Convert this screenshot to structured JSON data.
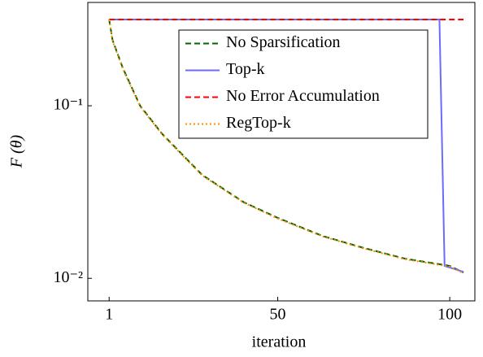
{
  "chart_data": {
    "type": "line",
    "xlabel": "iteration",
    "ylabel": "F (θ)",
    "xlim": [
      -5.2,
      107.3
    ],
    "xticks": [
      1,
      50,
      100
    ],
    "ylim": [
      0.0074,
      0.397
    ],
    "log_y": true,
    "yticks": [
      {
        "value": 0.01,
        "label": "10⁻²"
      },
      {
        "value": 0.1,
        "label": "10⁻¹"
      }
    ],
    "legend": "upper right",
    "series": [
      {
        "name": "No Sparsification",
        "color": "#006400",
        "dash": "dashed",
        "x": [
          1,
          2,
          5,
          10,
          16.5,
          28,
          40,
          50,
          63,
          75,
          87,
          100,
          104
        ],
        "values": [
          0.316,
          0.24,
          0.165,
          0.1,
          0.0684,
          0.0398,
          0.0277,
          0.0224,
          0.0176,
          0.015,
          0.013,
          0.0118,
          0.0108
        ]
      },
      {
        "name": "Top-k",
        "color": "#6b6bff",
        "dash": "solid",
        "x": [
          1,
          97,
          98.5,
          104
        ],
        "values": [
          0.316,
          0.316,
          0.0118,
          0.0109
        ]
      },
      {
        "name": "No Error Accumulation",
        "color": "#ff0000",
        "dash": "dashed",
        "x": [
          1,
          104
        ],
        "values": [
          0.316,
          0.316
        ]
      },
      {
        "name": "RegTop-k",
        "color": "#ff8c00",
        "dash": "dotted",
        "x": [
          1,
          2,
          5,
          10,
          16.5,
          28,
          40,
          50,
          63,
          75,
          87,
          100,
          104
        ],
        "values": [
          0.316,
          0.238,
          0.163,
          0.099,
          0.0678,
          0.0395,
          0.0275,
          0.0222,
          0.0175,
          0.0149,
          0.0129,
          0.0117,
          0.0107
        ]
      }
    ]
  }
}
